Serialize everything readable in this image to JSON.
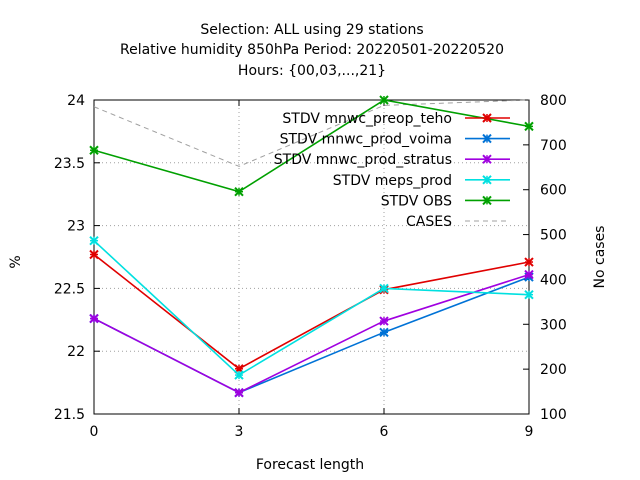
{
  "chart_data": {
    "type": "line",
    "title_lines": [
      "Selection: ALL using    29 stations",
      "Relative humidity 850hPa   Period: 20220501-20220520",
      "Hours: {00,03,...,21}"
    ],
    "xlabel": "Forecast length",
    "ylabel": "%",
    "y2label": "No cases",
    "x": [
      0,
      3,
      6,
      9
    ],
    "xlim": [
      0,
      9
    ],
    "ylim": [
      21.5,
      24
    ],
    "y2lim": [
      100,
      800
    ],
    "xticks": [
      "0",
      "3",
      "6",
      "9"
    ],
    "yticks": [
      "21.5",
      "22",
      "22.5",
      "23",
      "23.5",
      "24"
    ],
    "y2ticks": [
      "100",
      "200",
      "300",
      "400",
      "500",
      "600",
      "700",
      "800"
    ],
    "grid": true,
    "legend_position": "top-right",
    "series": [
      {
        "name": "STDV mnwc_preop_teho",
        "color": "#e00000",
        "marker": "x",
        "axis": "left",
        "values": [
          22.77,
          21.86,
          22.49,
          22.71
        ]
      },
      {
        "name": "STDV mnwc_prod_voima",
        "color": "#0072d6",
        "marker": "x",
        "axis": "left",
        "values": [
          22.26,
          21.67,
          22.15,
          22.59
        ]
      },
      {
        "name": "STDV mnwc_prod_stratus",
        "color": "#a000e0",
        "marker": "x",
        "axis": "left",
        "values": [
          22.26,
          21.67,
          22.24,
          22.61
        ]
      },
      {
        "name": "STDV meps_prod",
        "color": "#00e0e0",
        "marker": "x",
        "axis": "left",
        "values": [
          22.88,
          21.81,
          22.5,
          22.45
        ]
      },
      {
        "name": "STDV OBS",
        "color": "#00a000",
        "marker": "x",
        "axis": "left",
        "values": [
          23.6,
          23.27,
          24.0,
          23.79
        ]
      },
      {
        "name": "CASES",
        "color": "#a0a0a0",
        "marker": "none",
        "dash": true,
        "axis": "right",
        "values": [
          785,
          652,
          788,
          800
        ]
      }
    ]
  }
}
